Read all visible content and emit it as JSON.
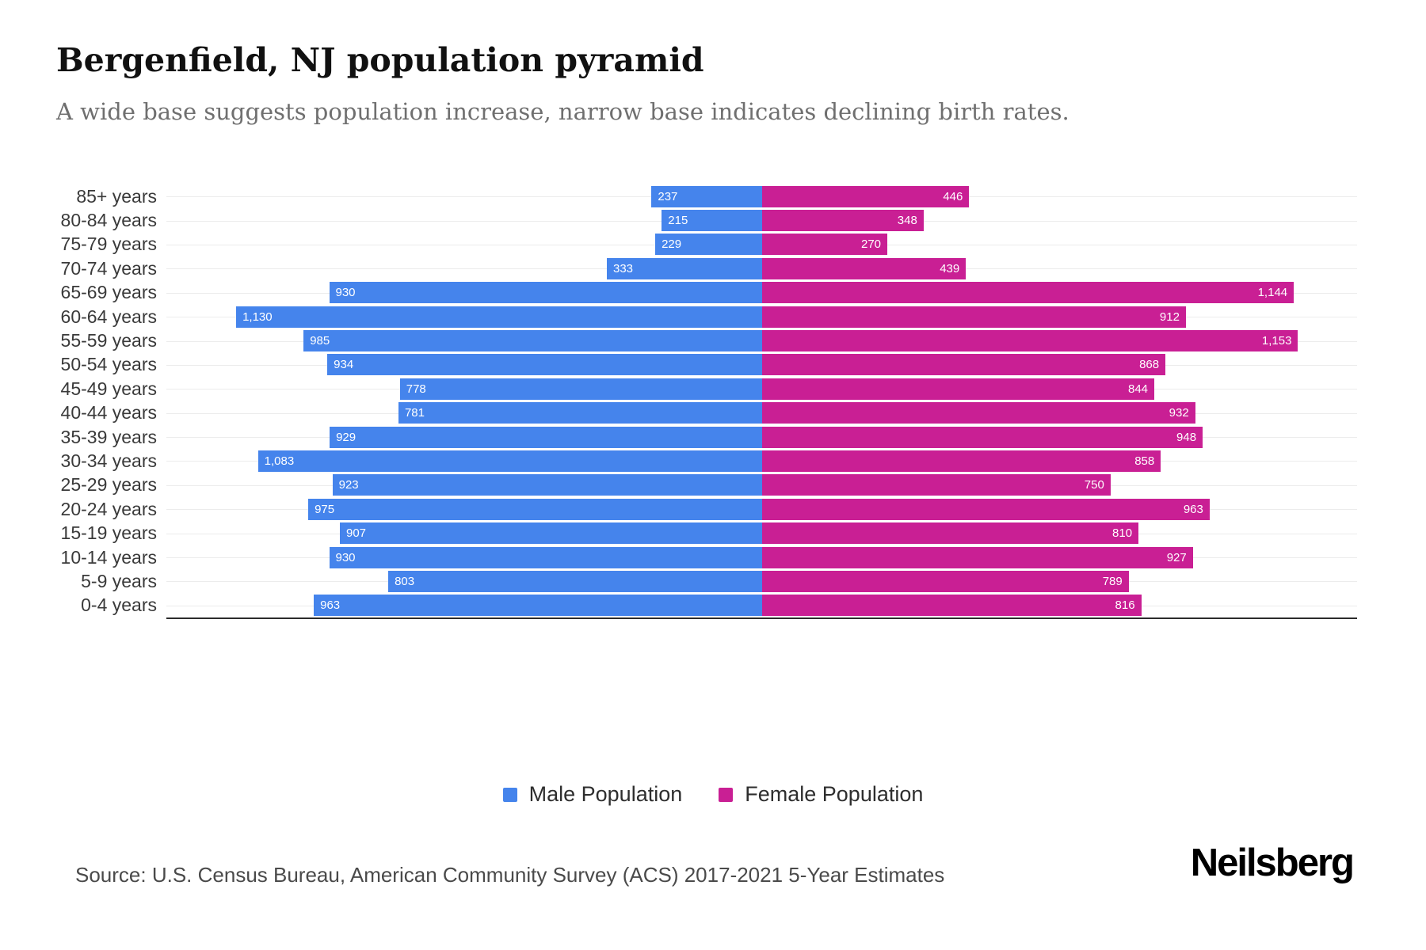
{
  "title": "Bergenfield, NJ population pyramid",
  "subtitle": "A wide base suggests population increase, narrow base indicates declining birth rates.",
  "legend": {
    "male_label": "Male Population",
    "female_label": "Female Population"
  },
  "source": "Source: U.S. Census Bureau, American Community Survey (ACS) 2017-2021 5-Year Estimates",
  "brand": "Neilsberg",
  "colors": {
    "male": "#4584EC",
    "female": "#C91F94",
    "gridline": "#ececec",
    "axis": "#2b2b2b"
  },
  "chart_data": {
    "type": "bar",
    "subtype": "population-pyramid-horizontal",
    "title": "Bergenfield, NJ population pyramid",
    "categories": [
      "85+ years",
      "80-84 years",
      "75-79 years",
      "70-74 years",
      "65-69 years",
      "60-64 years",
      "55-59 years",
      "50-54 years",
      "45-49 years",
      "40-44 years",
      "35-39 years",
      "30-34 years",
      "25-29 years",
      "20-24 years",
      "15-19 years",
      "10-14 years",
      "5-9 years",
      "0-4 years"
    ],
    "series": [
      {
        "name": "Male Population",
        "side": "left",
        "color": "#4584EC",
        "values": [
          237,
          215,
          229,
          333,
          930,
          1130,
          985,
          934,
          778,
          781,
          929,
          1083,
          923,
          975,
          907,
          930,
          803,
          963
        ]
      },
      {
        "name": "Female Population",
        "side": "right",
        "color": "#C91F94",
        "values": [
          446,
          348,
          270,
          439,
          1144,
          912,
          1153,
          868,
          844,
          932,
          948,
          858,
          750,
          963,
          810,
          927,
          789,
          816
        ]
      }
    ],
    "axis_max_per_side": 1280,
    "grid": true,
    "value_labels": "inside-outer-end",
    "legend_position": "bottom"
  }
}
